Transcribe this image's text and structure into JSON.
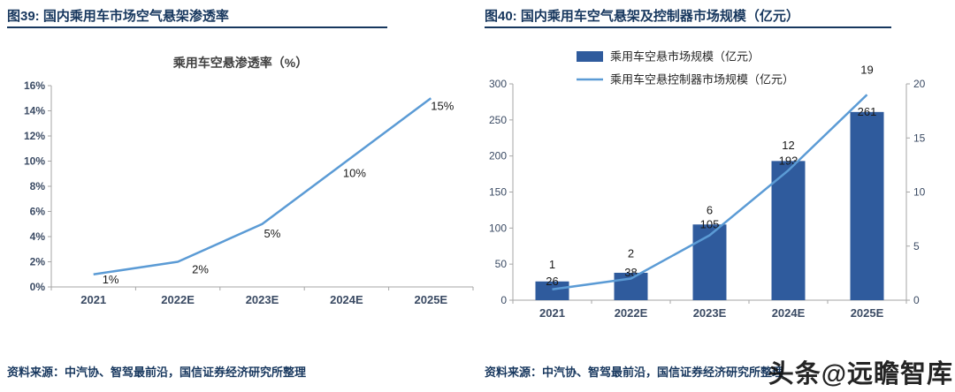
{
  "page": {
    "watermark_text": "头条@远瞻智库"
  },
  "colors": {
    "header_text": "#17375E",
    "rule": "#17375E",
    "source_text": "#17375E",
    "chart_title": "#404040",
    "axis": "#A6A6A6",
    "tick_text": "#3A4A63",
    "data_label_text": "#1A1A1A",
    "legend_text": "#262626",
    "bar_fill": "#2F5B9D",
    "line_stroke": "#5B9BD5"
  },
  "figure_left": {
    "header": "图39: 国内乘用车市场空气悬架渗透率",
    "source": "资料来源：中汽协、智驾最前沿，国信证券经济研究所整理",
    "chart_data": {
      "type": "line",
      "title": "乘用车空悬渗透率（%）",
      "categories": [
        "2021",
        "2022E",
        "2023E",
        "2024E",
        "2025E"
      ],
      "values": [
        1,
        2,
        5,
        10,
        15
      ],
      "point_labels": [
        "1%",
        "2%",
        "5%",
        "10%",
        "15%"
      ],
      "xlabel": "",
      "ylabel": "",
      "ylim": [
        0,
        16
      ],
      "ytick_step": 2,
      "ytick_labels": [
        "0%",
        "2%",
        "4%",
        "6%",
        "8%",
        "10%",
        "12%",
        "14%",
        "16%"
      ],
      "grid": false,
      "legend": false
    }
  },
  "figure_right": {
    "header": "图40: 国内乘用车空气悬架及控制器市场规模（亿元）",
    "source": "资料来源：中汽协、智驾最前沿，国信证券经济研究所整理",
    "chart_data": {
      "type": "bar+line",
      "categories": [
        "2021",
        "2022E",
        "2023E",
        "2024E",
        "2025E"
      ],
      "series": [
        {
          "name": "乘用车空悬市场规模（亿元）",
          "type": "bar",
          "axis": "left",
          "color": "#2F5B9D",
          "values": [
            26,
            38,
            105,
            193,
            261
          ]
        },
        {
          "name": "乘用车空悬控制器市场规模（亿元）",
          "type": "line",
          "axis": "right",
          "color": "#5B9BD5",
          "values": [
            1,
            2,
            6,
            12,
            19
          ]
        }
      ],
      "left_axis": {
        "min": 0,
        "max": 300,
        "step": 50,
        "tick_labels": [
          "0",
          "50",
          "100",
          "150",
          "200",
          "250",
          "300"
        ]
      },
      "right_axis": {
        "min": 0,
        "max": 20,
        "step": 5,
        "tick_labels": [
          "0",
          "5",
          "10",
          "15",
          "20"
        ]
      },
      "grid": false,
      "legend_position": "top"
    }
  }
}
